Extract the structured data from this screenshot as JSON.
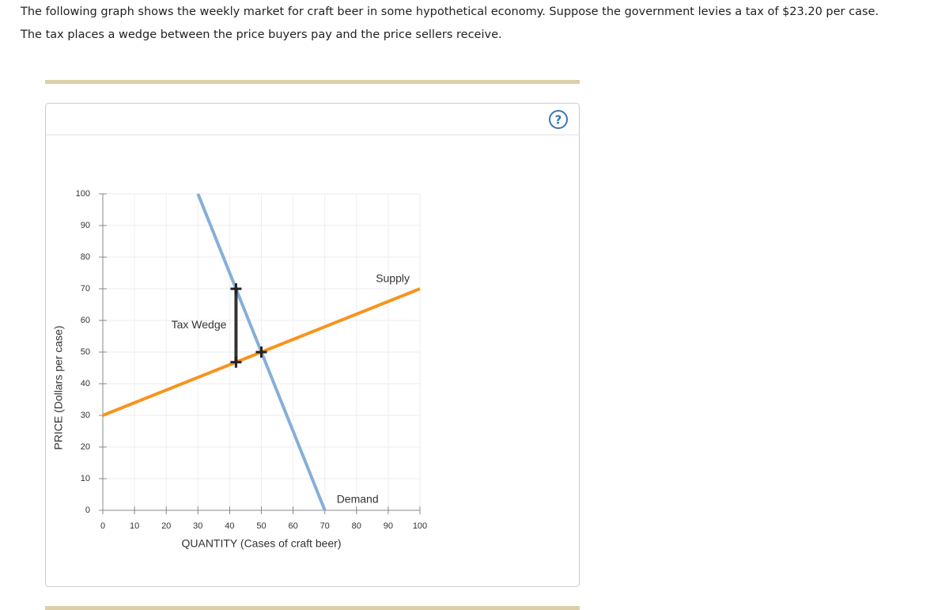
{
  "header": {
    "line1": "The following graph shows the weekly market for craft beer in some hypothetical economy. Suppose the government levies a tax of $23.20 per case.",
    "line2": "The tax places a wedge between the price buyers pay and the price sellers receive."
  },
  "help": "?",
  "chart_data": {
    "type": "line",
    "x_label": "QUANTITY (Cases of craft beer)",
    "y_label": "PRICE (Dollars per case)",
    "xlim": [
      0,
      100
    ],
    "ylim": [
      0,
      100
    ],
    "xticks": [
      0,
      10,
      20,
      30,
      40,
      50,
      60,
      70,
      80,
      90,
      100
    ],
    "yticks": [
      0,
      10,
      20,
      30,
      40,
      50,
      60,
      70,
      80,
      90,
      100
    ],
    "grid": true,
    "series": [
      {
        "name": "Demand",
        "color": "#86afd8",
        "x": [
          30,
          70
        ],
        "values": [
          100,
          0
        ]
      },
      {
        "name": "Supply",
        "color": "#f7941d",
        "x": [
          0,
          100
        ],
        "values": [
          30,
          70
        ]
      }
    ],
    "tax_wedge": {
      "label": "Tax Wedge",
      "x": 42,
      "top": 70,
      "bottom": 46.8
    },
    "equilibrium": {
      "x": 50,
      "y": 50
    }
  }
}
